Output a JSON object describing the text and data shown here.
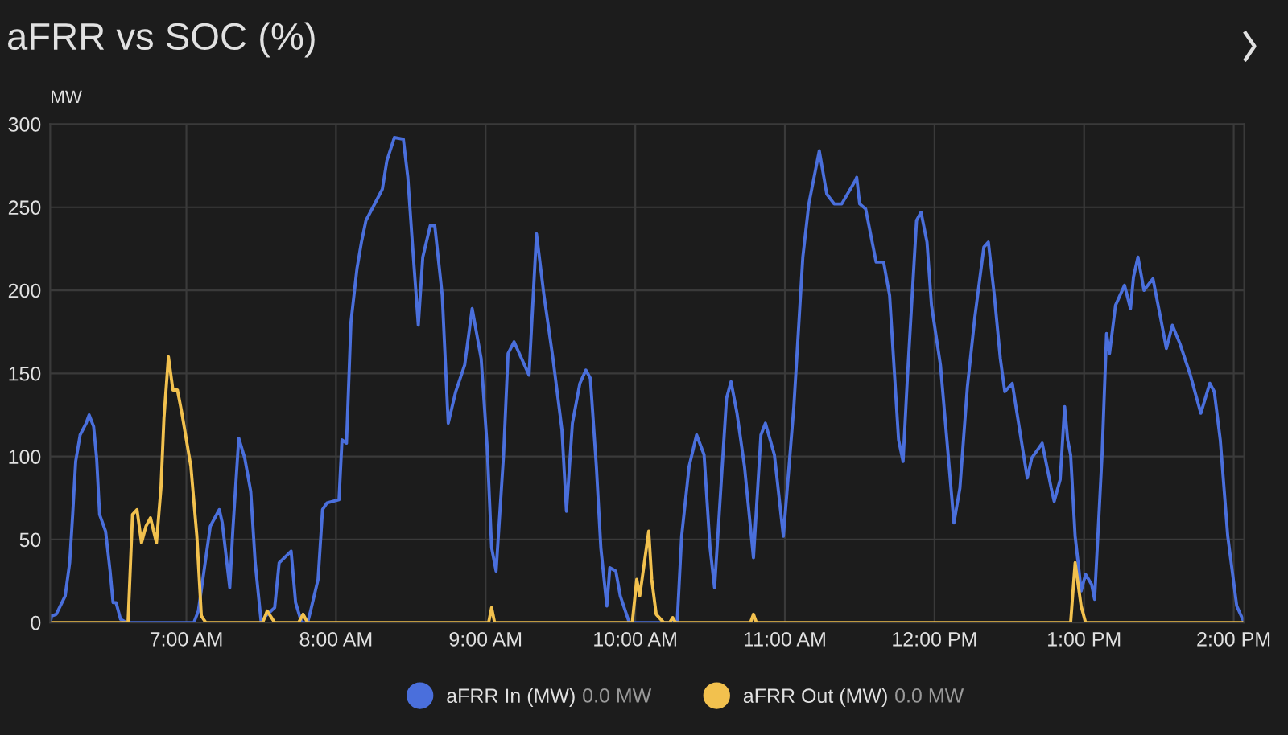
{
  "chart_data": {
    "type": "line",
    "title": "aFRR vs SOC (%)",
    "ylabel": "MW",
    "annotations": [
      "0.0 MW",
      "0.0 MW"
    ],
    "xlim": [
      6.09,
      14.07
    ],
    "xticks": [
      {
        "value": 7,
        "label": "7:00 AM"
      },
      {
        "value": 8,
        "label": "8:00 AM"
      },
      {
        "value": 9,
        "label": "9:00 AM"
      },
      {
        "value": 10,
        "label": "10:00 AM"
      },
      {
        "value": 11,
        "label": "11:00 AM"
      },
      {
        "value": 12,
        "label": "12:00 PM"
      },
      {
        "value": 13,
        "label": "1:00 PM"
      },
      {
        "value": 14,
        "label": "2:00 PM"
      }
    ],
    "ylim": [
      0,
      300
    ],
    "yticks": [
      0,
      50,
      100,
      150,
      200,
      250,
      300
    ],
    "grid": true,
    "legend": "bottom",
    "line_style": "solid",
    "marker": "none",
    "series": [
      {
        "name": "aFRR In (MW)",
        "color": "#4a6fdc",
        "x": [
          6.09,
          6.1,
          6.13,
          6.19,
          6.22,
          6.24,
          6.26,
          6.29,
          6.33,
          6.35,
          6.38,
          6.4,
          6.42,
          6.46,
          6.49,
          6.51,
          6.53,
          6.56,
          6.6,
          7.05,
          7.08,
          7.16,
          7.19,
          7.22,
          7.24,
          7.29,
          7.31,
          7.35,
          7.39,
          7.43,
          7.46,
          7.5,
          7.53,
          7.59,
          7.62,
          7.7,
          7.73,
          7.77,
          7.81,
          7.83,
          7.88,
          7.91,
          7.94,
          8.02,
          8.04,
          8.07,
          8.1,
          8.14,
          8.17,
          8.2,
          8.27,
          8.31,
          8.34,
          8.39,
          8.45,
          8.48,
          8.51,
          8.55,
          8.58,
          8.63,
          8.66,
          8.71,
          8.75,
          8.8,
          8.86,
          8.91,
          8.97,
          9.01,
          9.04,
          9.07,
          9.12,
          9.15,
          9.19,
          9.24,
          9.29,
          9.34,
          9.39,
          9.45,
          9.51,
          9.54,
          9.58,
          9.63,
          9.67,
          9.7,
          9.74,
          9.77,
          9.81,
          9.83,
          9.87,
          9.9,
          9.96,
          10.28,
          10.31,
          10.36,
          10.41,
          10.46,
          10.5,
          10.53,
          10.61,
          10.64,
          10.68,
          10.73,
          10.79,
          10.84,
          10.87,
          10.93,
          10.99,
          11.06,
          11.12,
          11.16,
          11.23,
          11.28,
          11.33,
          11.38,
          11.47,
          11.48,
          11.5,
          11.54,
          11.61,
          11.66,
          11.7,
          11.76,
          11.79,
          11.82,
          11.88,
          11.91,
          11.95,
          11.98,
          12.04,
          12.08,
          12.13,
          12.17,
          12.22,
          12.27,
          12.33,
          12.36,
          12.4,
          12.44,
          12.47,
          12.52,
          12.62,
          12.65,
          12.72,
          12.78,
          12.8,
          12.84,
          12.87,
          12.89,
          12.91,
          12.94,
          12.96,
          12.98,
          13.01,
          13.05,
          13.07,
          13.12,
          13.15,
          13.17,
          13.21,
          13.27,
          13.31,
          13.33,
          13.36,
          13.4,
          13.46,
          13.51,
          13.55,
          13.59,
          13.64,
          13.71,
          13.78,
          13.84,
          13.87,
          13.91,
          13.96,
          14.02,
          14.07
        ],
        "values": [
          0,
          4,
          5,
          16,
          36,
          65,
          97,
          113,
          120,
          125,
          118,
          99,
          65,
          55,
          31,
          12,
          12,
          2,
          0,
          0,
          7,
          58,
          63,
          68,
          60,
          21,
          55,
          111,
          99,
          79,
          36,
          0,
          4,
          9,
          36,
          43,
          12,
          0,
          0,
          7,
          26,
          68,
          72,
          74,
          110,
          108,
          181,
          213,
          229,
          242,
          254,
          261,
          278,
          292,
          291,
          268,
          229,
          179,
          220,
          239,
          239,
          197,
          120,
          139,
          155,
          189,
          159,
          106,
          45,
          31,
          101,
          162,
          169,
          159,
          149,
          234,
          197,
          159,
          116,
          67,
          120,
          144,
          152,
          147,
          94,
          45,
          10,
          33,
          31,
          16,
          0,
          0,
          52,
          94,
          113,
          101,
          45,
          21,
          135,
          145,
          126,
          94,
          39,
          113,
          120,
          101,
          52,
          130,
          220,
          252,
          284,
          258,
          252,
          252,
          266,
          268,
          252,
          249,
          217,
          217,
          197,
          110,
          97,
          149,
          242,
          247,
          229,
          191,
          155,
          113,
          60,
          81,
          142,
          184,
          226,
          229,
          197,
          159,
          139,
          144,
          87,
          99,
          108,
          81,
          73,
          86,
          130,
          110,
          101,
          52,
          36,
          19,
          29,
          23,
          14,
          101,
          174,
          162,
          191,
          203,
          189,
          208,
          220,
          200,
          207,
          184,
          165,
          179,
          168,
          149,
          126,
          144,
          139,
          110,
          52,
          10,
          0
        ]
      },
      {
        "name": "aFRR Out (MW)",
        "color": "#f2c14e",
        "x": [
          6.09,
          6.61,
          6.64,
          6.67,
          6.7,
          6.73,
          6.76,
          6.8,
          6.83,
          6.85,
          6.88,
          6.91,
          6.94,
          6.97,
          7.03,
          7.07,
          7.1,
          7.13,
          7.51,
          7.54,
          7.59,
          7.75,
          7.78,
          7.81,
          9.02,
          9.04,
          9.06,
          9.98,
          10.01,
          10.03,
          10.09,
          10.11,
          10.14,
          10.19,
          10.23,
          10.25,
          10.27,
          10.77,
          10.79,
          10.81,
          12.91,
          12.94,
          12.98,
          13.01,
          14.07
        ],
        "values": [
          0,
          0,
          65,
          68,
          48,
          58,
          63,
          48,
          81,
          123,
          160,
          140,
          140,
          126,
          94,
          52,
          4,
          0,
          0,
          7,
          0,
          0,
          5,
          0,
          0,
          9,
          0,
          0,
          26,
          16,
          55,
          26,
          5,
          0,
          0,
          3,
          0,
          0,
          5,
          0,
          0,
          36,
          10,
          0,
          0
        ]
      }
    ]
  }
}
